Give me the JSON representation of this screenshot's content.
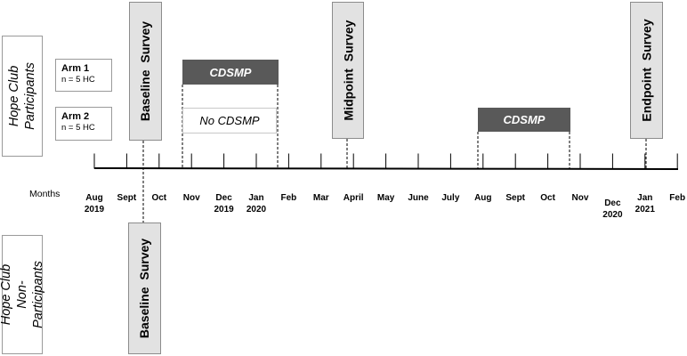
{
  "groups": {
    "participants": "Hope Club\nParticipants",
    "non_participants": "Hope Club\nNon-Participants"
  },
  "arms": [
    {
      "title": "Arm 1",
      "n": "n = 5 HC"
    },
    {
      "title": "Arm 2",
      "n": "n = 5 HC"
    }
  ],
  "surveys": {
    "baseline_top": "Baseline Survey",
    "midpoint": "Midpoint Survey",
    "endpoint": "Endpoint Survey",
    "baseline_bottom": "Baseline Survey"
  },
  "interventions": {
    "cdsmp_first": "CDSMP",
    "no_cdsmp": "No CDSMP",
    "cdsmp_second": "CDSMP"
  },
  "axis": {
    "label": "Months",
    "ticks": [
      "Aug\n2019",
      "Sept",
      "Oct",
      "Nov",
      "Dec\n2019",
      "Jan\n2020",
      "Feb",
      "Mar",
      "April",
      "May",
      "June",
      "July",
      "Aug",
      "Sept",
      "Oct",
      "Nov",
      "Dec\n2020",
      "Jan\n2021",
      "Feb"
    ]
  },
  "colors": {
    "cdsmp_fill": "#595959",
    "survey_fill": "#e2e2e2",
    "axis_line": "#000000"
  }
}
